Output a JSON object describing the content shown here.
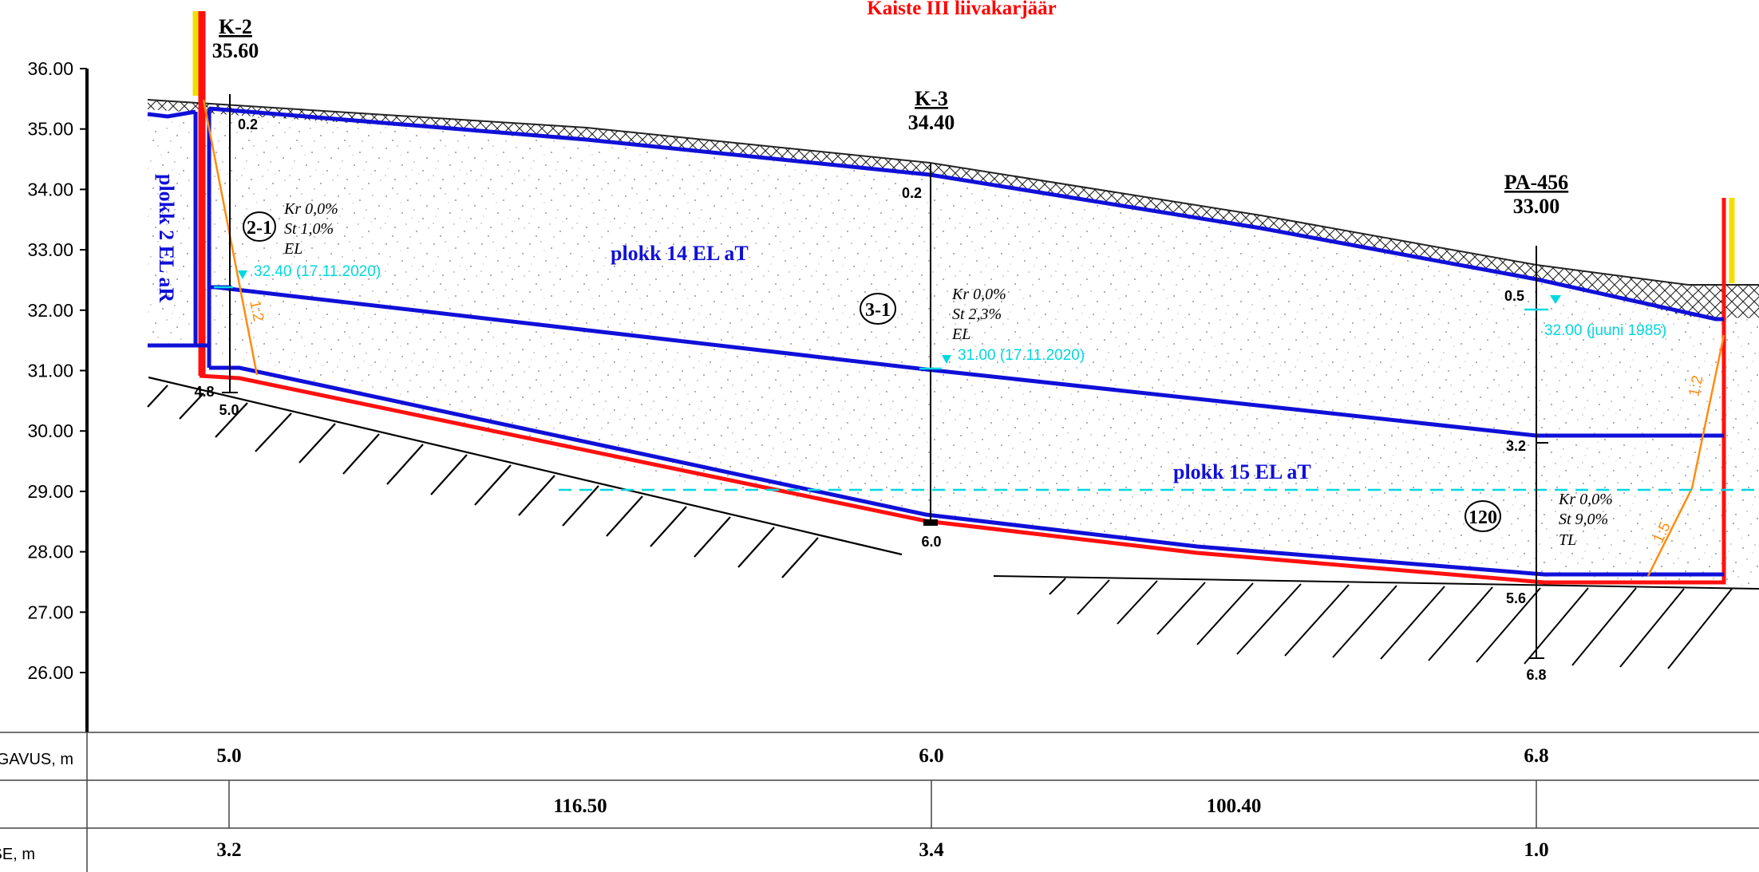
{
  "title": "Kaiste III liivakarjäär",
  "axis": {
    "ticks": [
      "36.00",
      "35.00",
      "34.00",
      "33.00",
      "32.00",
      "31.00",
      "30.00",
      "29.00",
      "28.00",
      "27.00",
      "26.00"
    ]
  },
  "boreholes": [
    {
      "name": "K-2",
      "elevation": "35.60",
      "top_label": "0.2",
      "base_label": "4.8",
      "depth_label": "5.0"
    },
    {
      "name": "K-3",
      "elevation": "34.40",
      "top_label": "0.2",
      "depth_label": "6.0"
    },
    {
      "name": "PA-456",
      "elevation": "33.00",
      "top_label": "0.5",
      "mid_label": "3.2",
      "base_label": "5.6",
      "depth_label": "6.8"
    }
  ],
  "blocks": {
    "left": "plokk 2 EL aR",
    "center": "plokk 14 EL aT",
    "lower": "plokk 15 EL aT"
  },
  "layers": [
    {
      "id": "2-1",
      "lines": [
        "Kr 0,0%",
        "St 1,0%",
        "EL"
      ]
    },
    {
      "id": "3-1",
      "lines": [
        "Kr 0,0%",
        "St 2,3%",
        "EL"
      ]
    },
    {
      "id": "120",
      "lines": [
        "Kr 0,0%",
        "St 9,0%",
        "TL"
      ]
    }
  ],
  "water_levels": [
    {
      "label": "32.40 (17.11.2020)"
    },
    {
      "label": "31.00 (17.11.2020)"
    },
    {
      "label": "32.00 (juuni 1985)"
    }
  ],
  "slopes": [
    "1:2",
    "1:2",
    "1:5"
  ],
  "table": {
    "rows": [
      {
        "label": "SÜGAVUS, m",
        "values": [
          "5.0",
          "6.0",
          "6.8"
        ]
      },
      {
        "label": "",
        "values": [
          "116.50",
          "100.40"
        ]
      },
      {
        "label": "VEETASE, m",
        "values": [
          "3.2",
          "3.4",
          "1.0"
        ]
      }
    ]
  },
  "colors": {
    "blue": "#1010d8",
    "red": "#ff1010",
    "cyan": "#00d8e0",
    "orange": "#ff8c10",
    "yellow": "#f0e000",
    "title": "#ff0000"
  }
}
